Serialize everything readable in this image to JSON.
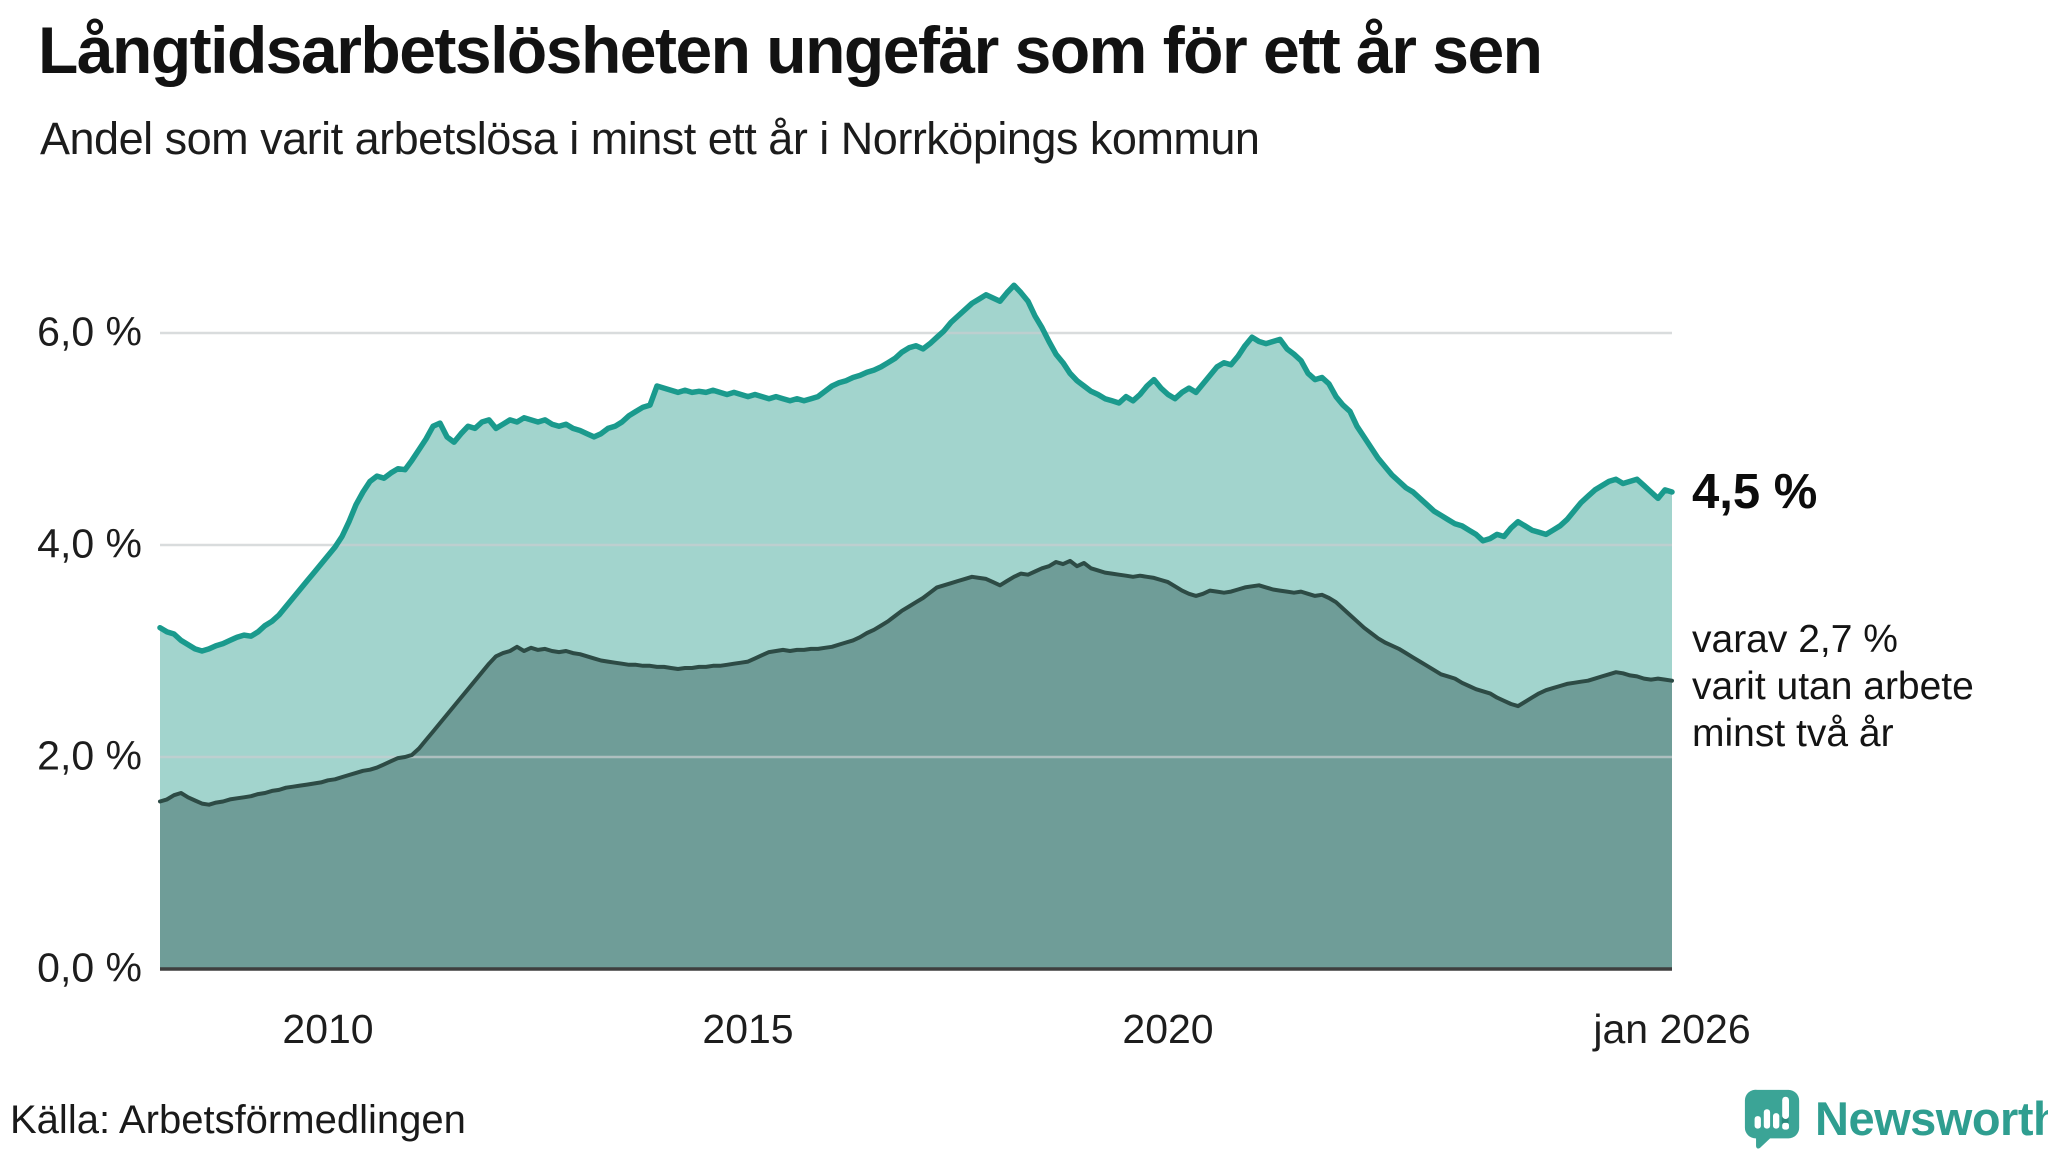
{
  "header": {
    "title": "Långtidsarbetslösheten ungefär som för ett år sen",
    "subtitle": "Andel som varit arbetslösa i minst ett år i Norrköpings kommun"
  },
  "chart_data": {
    "type": "area",
    "title": "Långtidsarbetslösheten ungefär som för ett år sen",
    "subtitle": "Andel som varit arbetslösa i minst ett år i Norrköpings kommun",
    "grid": "horizontal",
    "legend_position": "right-edge-labels",
    "x_axis": {
      "range_years": [
        2008,
        2026
      ],
      "ticks": [
        {
          "label": "2010",
          "year": 2010
        },
        {
          "label": "2015",
          "year": 2015
        },
        {
          "label": "2020",
          "year": 2020
        },
        {
          "label": "jan 2026",
          "year": 2026
        }
      ]
    },
    "y_axis": {
      "unit": "%",
      "range": [
        0,
        6.9
      ],
      "ticks": [
        {
          "label": "0,0 %",
          "value": 0
        },
        {
          "label": "2,0 %",
          "value": 2
        },
        {
          "label": "4,0 %",
          "value": 4
        },
        {
          "label": "6,0 %",
          "value": 6
        }
      ]
    },
    "series": [
      {
        "name": "Andel arbetslösa minst ett år",
        "line_color": "#1a9a8d",
        "fill_color": "#a2d4cd",
        "end_value": 4.5,
        "end_label": "4,5 %",
        "start_year": 2008,
        "points_per_year": 12,
        "values": [
          3.22,
          3.18,
          3.16,
          3.1,
          3.06,
          3.02,
          3.0,
          3.02,
          3.05,
          3.07,
          3.1,
          3.13,
          3.15,
          3.14,
          3.18,
          3.24,
          3.28,
          3.34,
          3.42,
          3.5,
          3.58,
          3.66,
          3.74,
          3.82,
          3.9,
          3.98,
          4.08,
          4.22,
          4.38,
          4.5,
          4.6,
          4.65,
          4.63,
          4.68,
          4.72,
          4.71,
          4.8,
          4.9,
          5.0,
          5.12,
          5.15,
          5.02,
          4.97,
          5.05,
          5.12,
          5.1,
          5.16,
          5.18,
          5.1,
          5.14,
          5.18,
          5.16,
          5.2,
          5.18,
          5.16,
          5.18,
          5.14,
          5.12,
          5.14,
          5.1,
          5.08,
          5.05,
          5.02,
          5.05,
          5.1,
          5.12,
          5.16,
          5.22,
          5.26,
          5.3,
          5.32,
          5.5,
          5.48,
          5.46,
          5.44,
          5.46,
          5.44,
          5.45,
          5.44,
          5.46,
          5.44,
          5.42,
          5.44,
          5.42,
          5.4,
          5.42,
          5.4,
          5.38,
          5.4,
          5.38,
          5.36,
          5.38,
          5.36,
          5.38,
          5.4,
          5.45,
          5.5,
          5.53,
          5.55,
          5.58,
          5.6,
          5.63,
          5.65,
          5.68,
          5.72,
          5.76,
          5.82,
          5.86,
          5.88,
          5.85,
          5.9,
          5.96,
          6.02,
          6.1,
          6.16,
          6.22,
          6.28,
          6.32,
          6.36,
          6.33,
          6.3,
          6.38,
          6.45,
          6.38,
          6.3,
          6.16,
          6.05,
          5.92,
          5.8,
          5.72,
          5.62,
          5.55,
          5.5,
          5.45,
          5.42,
          5.38,
          5.36,
          5.34,
          5.4,
          5.36,
          5.42,
          5.5,
          5.56,
          5.48,
          5.42,
          5.38,
          5.44,
          5.48,
          5.44,
          5.52,
          5.6,
          5.68,
          5.72,
          5.7,
          5.78,
          5.88,
          5.96,
          5.92,
          5.9,
          5.92,
          5.94,
          5.85,
          5.8,
          5.74,
          5.62,
          5.56,
          5.58,
          5.52,
          5.4,
          5.32,
          5.26,
          5.12,
          5.02,
          4.92,
          4.82,
          4.74,
          4.66,
          4.6,
          4.54,
          4.5,
          4.44,
          4.38,
          4.32,
          4.28,
          4.24,
          4.2,
          4.18,
          4.14,
          4.1,
          4.04,
          4.06,
          4.1,
          4.08,
          4.16,
          4.22,
          4.18,
          4.14,
          4.12,
          4.1,
          4.14,
          4.18,
          4.24,
          4.32,
          4.4,
          4.46,
          4.52,
          4.56,
          4.6,
          4.62,
          4.58,
          4.6,
          4.62,
          4.56,
          4.5,
          4.44,
          4.52,
          4.5
        ]
      },
      {
        "name": "Andel arbetslösa minst två år",
        "line_color": "#2d4b45",
        "fill_color": "#6f9d98",
        "end_value": 2.7,
        "end_label": "varav 2,7 % varit utan arbete minst två år",
        "start_year": 2008,
        "points_per_year": 12,
        "values": [
          1.58,
          1.6,
          1.64,
          1.66,
          1.62,
          1.59,
          1.56,
          1.55,
          1.57,
          1.58,
          1.6,
          1.61,
          1.62,
          1.63,
          1.65,
          1.66,
          1.68,
          1.69,
          1.71,
          1.72,
          1.73,
          1.74,
          1.75,
          1.76,
          1.78,
          1.79,
          1.81,
          1.83,
          1.85,
          1.87,
          1.88,
          1.9,
          1.93,
          1.96,
          1.99,
          2.0,
          2.02,
          2.08,
          2.16,
          2.24,
          2.32,
          2.4,
          2.48,
          2.56,
          2.64,
          2.72,
          2.8,
          2.88,
          2.95,
          2.98,
          3.0,
          3.04,
          3.0,
          3.03,
          3.01,
          3.02,
          3.0,
          2.99,
          3.0,
          2.98,
          2.97,
          2.95,
          2.93,
          2.91,
          2.9,
          2.89,
          2.88,
          2.87,
          2.87,
          2.86,
          2.86,
          2.85,
          2.85,
          2.84,
          2.83,
          2.84,
          2.84,
          2.85,
          2.85,
          2.86,
          2.86,
          2.87,
          2.88,
          2.89,
          2.9,
          2.93,
          2.96,
          2.99,
          3.0,
          3.01,
          3.0,
          3.01,
          3.01,
          3.02,
          3.02,
          3.03,
          3.04,
          3.06,
          3.08,
          3.1,
          3.13,
          3.17,
          3.2,
          3.24,
          3.28,
          3.33,
          3.38,
          3.42,
          3.46,
          3.5,
          3.55,
          3.6,
          3.62,
          3.64,
          3.66,
          3.68,
          3.7,
          3.69,
          3.68,
          3.65,
          3.62,
          3.66,
          3.7,
          3.73,
          3.72,
          3.75,
          3.78,
          3.8,
          3.84,
          3.82,
          3.85,
          3.8,
          3.83,
          3.78,
          3.76,
          3.74,
          3.73,
          3.72,
          3.71,
          3.7,
          3.71,
          3.7,
          3.69,
          3.67,
          3.65,
          3.61,
          3.57,
          3.54,
          3.52,
          3.54,
          3.57,
          3.56,
          3.55,
          3.56,
          3.58,
          3.6,
          3.61,
          3.62,
          3.6,
          3.58,
          3.57,
          3.56,
          3.55,
          3.56,
          3.54,
          3.52,
          3.53,
          3.5,
          3.46,
          3.4,
          3.34,
          3.28,
          3.22,
          3.17,
          3.12,
          3.08,
          3.05,
          3.02,
          2.98,
          2.94,
          2.9,
          2.86,
          2.82,
          2.78,
          2.76,
          2.74,
          2.7,
          2.67,
          2.64,
          2.62,
          2.6,
          2.56,
          2.53,
          2.5,
          2.48,
          2.52,
          2.56,
          2.6,
          2.63,
          2.65,
          2.67,
          2.69,
          2.7,
          2.71,
          2.72,
          2.74,
          2.76,
          2.78,
          2.8,
          2.79,
          2.77,
          2.76,
          2.74,
          2.73,
          2.74,
          2.73,
          2.72
        ]
      }
    ]
  },
  "annotations": {
    "total_end_label": "4,5 %",
    "note_lines": [
      "varav 2,7 %",
      "varit utan arbete",
      "minst två år"
    ]
  },
  "footer": {
    "source": "Källa: Arbetsförmedlingen",
    "brand": "Newsworthy"
  },
  "colors": {
    "series1_line": "#1a9a8d",
    "series1_fill": "#a2d4cd",
    "series2_line": "#2d4b45",
    "series2_fill": "#6f9d98",
    "gridline": "#c9ced0",
    "axis_line": "#3f3f3f",
    "brand_teal": "#2f9e90",
    "logo_bubble": "#3ba496"
  }
}
